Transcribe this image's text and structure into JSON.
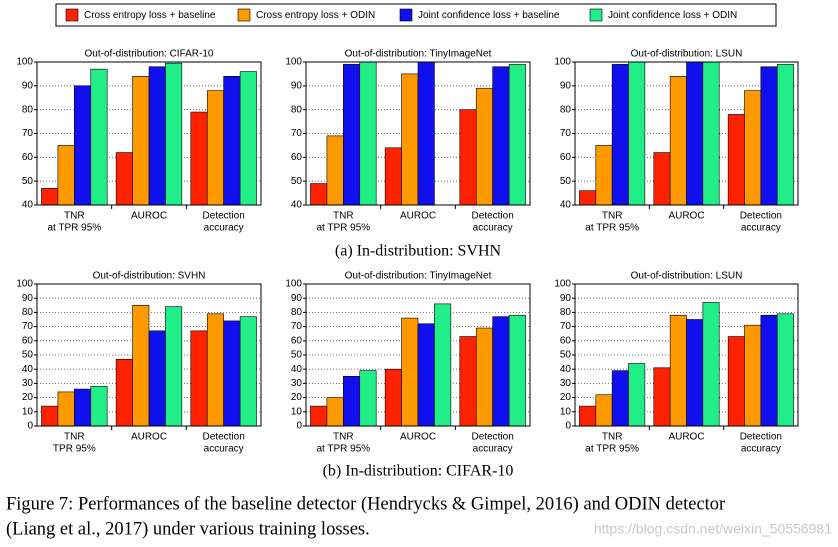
{
  "legend": [
    {
      "name": "Cross entropy loss + baseline",
      "color": "#ff2200"
    },
    {
      "name": "Cross entropy loss + ODIN",
      "color": "#ff9900"
    },
    {
      "name": "Joint confidence loss + baseline",
      "color": "#1010ee"
    },
    {
      "name": "Joint confidence loss + ODIN",
      "color": "#22ee88"
    }
  ],
  "captions": [
    "(a) In-distribution: SVHN",
    "(b) In-distribution: CIFAR-10"
  ],
  "figure_caption": [
    "Figure 7:   Performances of the baseline detector (Hendrycks & Gimpel, 2016) and ODIN detector",
    "(Liang et al., 2017) under various training losses."
  ],
  "watermark": "https://blog.csdn.net/weixin_50556981",
  "chart_data": [
    {
      "type": "bar",
      "title": "Out-of-distribution: CIFAR-10",
      "categories": [
        [
          "TNR",
          "at TPR 95%"
        ],
        [
          "AUROC"
        ],
        [
          "Detection",
          "accuracy"
        ]
      ],
      "series": [
        {
          "values": [
            47,
            62,
            79
          ]
        },
        {
          "values": [
            65,
            94,
            88
          ]
        },
        {
          "values": [
            90,
            98,
            94
          ]
        },
        {
          "values": [
            97,
            99.5,
            96
          ]
        }
      ],
      "ylim": [
        40,
        100
      ],
      "yticks": [
        40,
        50,
        60,
        70,
        80,
        90,
        100
      ],
      "grid": true
    },
    {
      "type": "bar",
      "title": "Out-of-distribution: TinyImageNet",
      "categories": [
        [
          "TNR",
          "at TPR 95%"
        ],
        [
          "AUROC"
        ],
        [
          "Detection",
          "accuracy"
        ]
      ],
      "series": [
        {
          "values": [
            49,
            64,
            80
          ]
        },
        {
          "values": [
            69,
            95,
            89
          ]
        },
        {
          "values": [
            99,
            100,
            98
          ]
        },
        {
          "values": [
            100,
            null,
            99
          ]
        }
      ],
      "ylim": [
        40,
        100
      ],
      "yticks": [
        40,
        50,
        60,
        70,
        80,
        90,
        100
      ],
      "grid": true
    },
    {
      "type": "bar",
      "title": "Out-of-distribution: LSUN",
      "categories": [
        [
          "TNR",
          "at TPR 95%"
        ],
        [
          "AUROC"
        ],
        [
          "Detection",
          "accuracy"
        ]
      ],
      "series": [
        {
          "values": [
            46,
            62,
            78
          ]
        },
        {
          "values": [
            65,
            94,
            88
          ]
        },
        {
          "values": [
            99,
            100,
            98
          ]
        },
        {
          "values": [
            100,
            100,
            99
          ]
        }
      ],
      "ylim": [
        40,
        100
      ],
      "yticks": [
        40,
        50,
        60,
        70,
        80,
        90,
        100
      ],
      "grid": true
    },
    {
      "type": "bar",
      "title": "Out-of-distribution: SVHN",
      "categories": [
        [
          "TNR",
          "TPR 95%"
        ],
        [
          "AUROC"
        ],
        [
          "Detection",
          "accuracy"
        ]
      ],
      "series": [
        {
          "values": [
            14,
            47,
            67
          ]
        },
        {
          "values": [
            24,
            85,
            79
          ]
        },
        {
          "values": [
            26,
            67,
            74
          ]
        },
        {
          "values": [
            28,
            84,
            77
          ]
        }
      ],
      "ylim": [
        0,
        100
      ],
      "yticks": [
        0,
        10,
        20,
        30,
        40,
        50,
        60,
        70,
        80,
        90,
        100
      ],
      "grid": true
    },
    {
      "type": "bar",
      "title": "Out-of-distribution: TinyImageNet",
      "categories": [
        [
          "TNR",
          "at TPR 95%"
        ],
        [
          "AUROC"
        ],
        [
          "Detection",
          "accuracy"
        ]
      ],
      "series": [
        {
          "values": [
            14,
            40,
            63
          ]
        },
        {
          "values": [
            20,
            76,
            69
          ]
        },
        {
          "values": [
            35,
            72,
            77
          ]
        },
        {
          "values": [
            39,
            86,
            78
          ]
        }
      ],
      "ylim": [
        0,
        100
      ],
      "yticks": [
        0,
        10,
        20,
        30,
        40,
        50,
        60,
        70,
        80,
        90,
        100
      ],
      "grid": true
    },
    {
      "type": "bar",
      "title": "Out-of-distribution: LSUN",
      "categories": [
        [
          "TNR",
          "at TPR 95%"
        ],
        [
          "AUROC"
        ],
        [
          "Detection",
          "accuracy"
        ]
      ],
      "series": [
        {
          "values": [
            14,
            41,
            63
          ]
        },
        {
          "values": [
            22,
            78,
            71
          ]
        },
        {
          "values": [
            39,
            75,
            78
          ]
        },
        {
          "values": [
            44,
            87,
            79
          ]
        }
      ],
      "ylim": [
        0,
        100
      ],
      "yticks": [
        0,
        10,
        20,
        30,
        40,
        50,
        60,
        70,
        80,
        90,
        100
      ],
      "grid": true
    }
  ]
}
